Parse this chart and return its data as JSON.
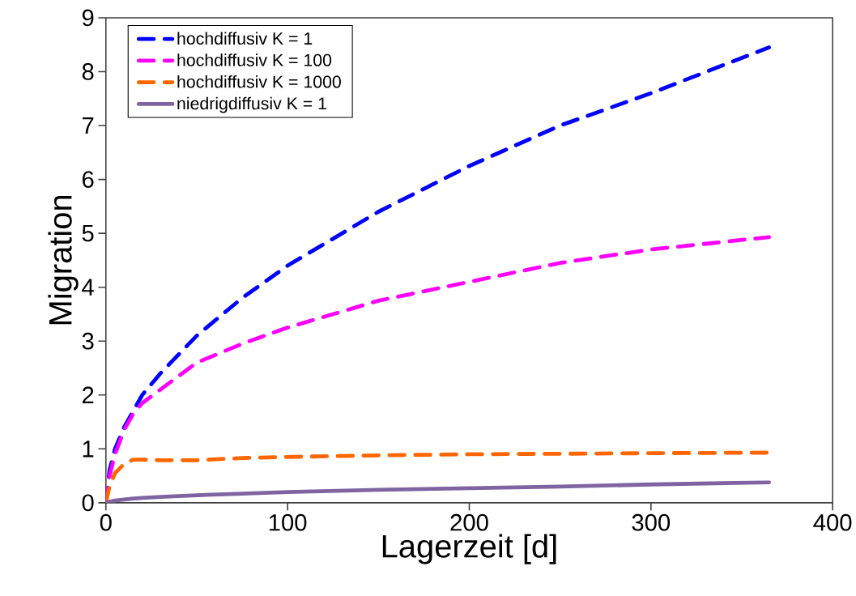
{
  "chart_data": {
    "type": "line",
    "xlabel": "Lagerzeit [d]",
    "ylabel": "Migration",
    "xlim": [
      0,
      400
    ],
    "ylim": [
      0,
      9
    ],
    "xticks": [
      0,
      100,
      200,
      300,
      400
    ],
    "yticks": [
      0,
      1,
      2,
      3,
      4,
      5,
      6,
      7,
      8,
      9
    ],
    "grid": false,
    "legend": "top left",
    "marker": "none",
    "x": [
      0,
      2,
      5,
      10,
      15,
      20,
      30,
      50,
      75,
      100,
      150,
      200,
      250,
      300,
      365
    ],
    "series": [
      {
        "name": "hochdiffusiv K = 1",
        "color": "#0000ff",
        "line_style": "dashed",
        "values": [
          0,
          0.6,
          1.0,
          1.4,
          1.7,
          2.0,
          2.4,
          3.1,
          3.8,
          4.4,
          5.4,
          6.25,
          7.0,
          7.6,
          8.45
        ]
      },
      {
        "name": "hochdiffusiv K = 100",
        "color": "#ff00ff",
        "line_style": "dashed",
        "values": [
          0,
          0.5,
          0.9,
          1.35,
          1.65,
          1.85,
          2.1,
          2.6,
          2.95,
          3.25,
          3.75,
          4.1,
          4.45,
          4.7,
          4.93
        ]
      },
      {
        "name": "hochdiffusiv K = 1000",
        "color": "#ff6600",
        "line_style": "dashed",
        "values": [
          0,
          0.3,
          0.55,
          0.72,
          0.8,
          0.8,
          0.79,
          0.79,
          0.83,
          0.85,
          0.88,
          0.9,
          0.91,
          0.92,
          0.93
        ]
      },
      {
        "name": "niedrigdiffusiv K = 1",
        "color": "#8064a2",
        "line_style": "solid",
        "values": [
          0,
          0.02,
          0.04,
          0.06,
          0.08,
          0.09,
          0.11,
          0.14,
          0.17,
          0.2,
          0.24,
          0.27,
          0.3,
          0.34,
          0.38
        ]
      }
    ]
  }
}
